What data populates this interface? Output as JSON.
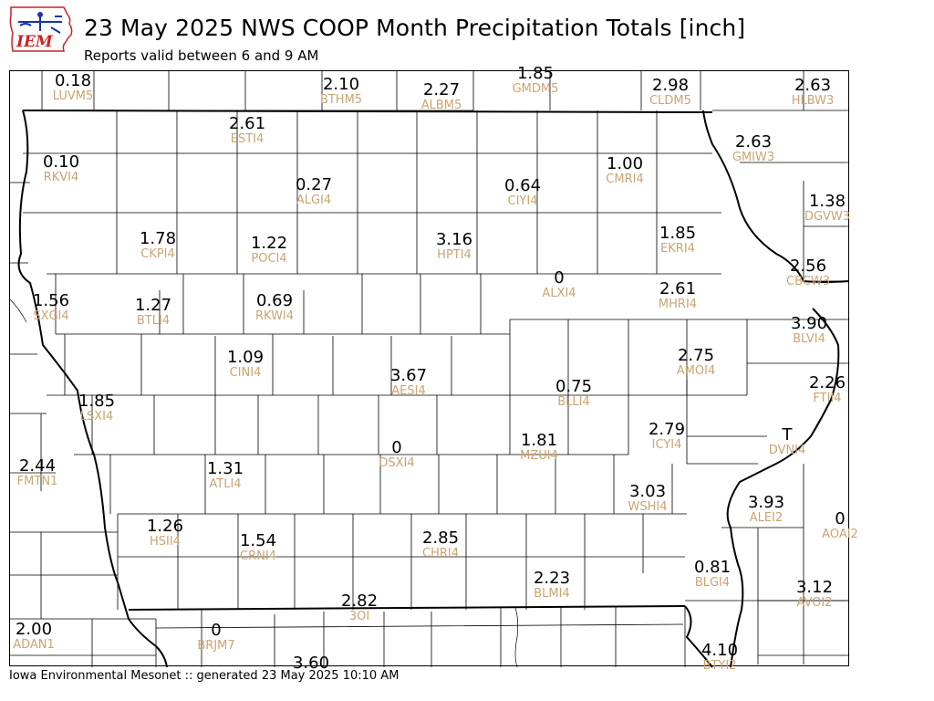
{
  "header": {
    "title": "23 May 2025 NWS COOP Month Precipitation Totals [inch]",
    "subtitle": "Reports valid between 6 and 9 AM",
    "logo_text": "IEM"
  },
  "footer": {
    "text": "Iowa Environmental Mesonet :: generated 23 May 2025 10:10 AM"
  },
  "colors": {
    "value_text": "#000000",
    "station_id_text": "#caa472",
    "county_lines": "#000000",
    "logo_red": "#cc2222",
    "logo_blue": "#1a33aa"
  },
  "stations": [
    {
      "id": "LUVM5",
      "value": "0.18"
    },
    {
      "id": "BTHM5",
      "value": "2.10"
    },
    {
      "id": "ALBM5",
      "value": "2.27"
    },
    {
      "id": "GMDM5",
      "value": "1.85"
    },
    {
      "id": "CLDM5",
      "value": "2.98"
    },
    {
      "id": "HLBW3",
      "value": "2.63"
    },
    {
      "id": "ESTI4",
      "value": "2.61"
    },
    {
      "id": "RKVI4",
      "value": "0.10"
    },
    {
      "id": "ALGI4",
      "value": "0.27"
    },
    {
      "id": "CIYI4",
      "value": "0.64"
    },
    {
      "id": "CMRI4",
      "value": "1.00"
    },
    {
      "id": "GMIW3",
      "value": "2.63"
    },
    {
      "id": "DGVW3",
      "value": "1.38"
    },
    {
      "id": "CKPI4",
      "value": "1.78"
    },
    {
      "id": "POCI4",
      "value": "1.22"
    },
    {
      "id": "HPTI4",
      "value": "3.16"
    },
    {
      "id": "EKRI4",
      "value": "1.85"
    },
    {
      "id": "CBCW3",
      "value": "2.56"
    },
    {
      "id": "SXGI4",
      "value": "1.56"
    },
    {
      "id": "BTLI4",
      "value": "1.27"
    },
    {
      "id": "RKWI4",
      "value": "0.69"
    },
    {
      "id": "ALXI4",
      "value": "0"
    },
    {
      "id": "MHRI4",
      "value": "2.61"
    },
    {
      "id": "BLVI4",
      "value": "3.90"
    },
    {
      "id": "CINI4",
      "value": "1.09"
    },
    {
      "id": "AESI4",
      "value": "3.67"
    },
    {
      "id": "BLLI4",
      "value": "0.75"
    },
    {
      "id": "AMOI4",
      "value": "2.75"
    },
    {
      "id": "FTII4",
      "value": "2.26"
    },
    {
      "id": "LSXI4",
      "value": "1.85"
    },
    {
      "id": "ICYI4",
      "value": "2.79"
    },
    {
      "id": "DVNI4",
      "value": "T"
    },
    {
      "id": "DSXI4",
      "value": "0"
    },
    {
      "id": "MZUI4",
      "value": "1.81"
    },
    {
      "id": "FMTN1",
      "value": "2.44"
    },
    {
      "id": "ATLI4",
      "value": "1.31"
    },
    {
      "id": "WSHI4",
      "value": "3.03"
    },
    {
      "id": "ALEI2",
      "value": "3.93"
    },
    {
      "id": "AOAI2",
      "value": "0"
    },
    {
      "id": "HSII4",
      "value": "1.26"
    },
    {
      "id": "CRNI4",
      "value": "1.54"
    },
    {
      "id": "CHRI4",
      "value": "2.85"
    },
    {
      "id": "BLMI4",
      "value": "2.23"
    },
    {
      "id": "BLGI4",
      "value": "0.81"
    },
    {
      "id": "AVOI2",
      "value": "3.12"
    },
    {
      "id": "3OI",
      "value": "2.82"
    },
    {
      "id": "ADAN1",
      "value": "2.00"
    },
    {
      "id": "BRJM7",
      "value": "0"
    },
    {
      "id": "BTYI2",
      "value": "4.10"
    },
    {
      "id": "",
      "value": "3.60"
    }
  ]
}
